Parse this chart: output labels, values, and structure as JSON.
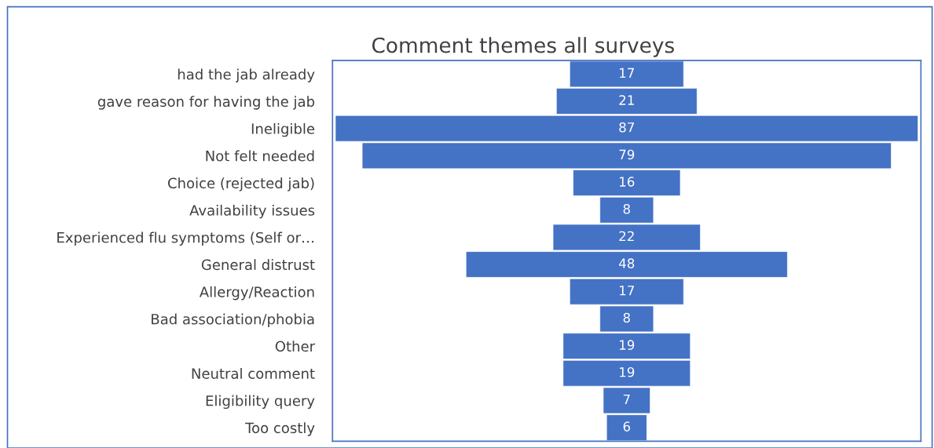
{
  "chart_data": {
    "type": "other",
    "title": "Comment themes all surveys",
    "categories": [
      "had the jab already",
      "gave reason for having the jab",
      "Ineligible",
      "Not felt needed",
      "Choice (rejected jab)",
      "Availability issues",
      "Experienced flu symptoms (Self or…",
      "General distrust",
      "Allergy/Reaction",
      "Bad association/phobia",
      "Other",
      "Neutral comment",
      "Eligibility query",
      "Too costly"
    ],
    "values": [
      17,
      21,
      87,
      79,
      16,
      8,
      22,
      48,
      17,
      8,
      19,
      19,
      7,
      6
    ],
    "color": "#4472c4",
    "data_labels": true
  }
}
